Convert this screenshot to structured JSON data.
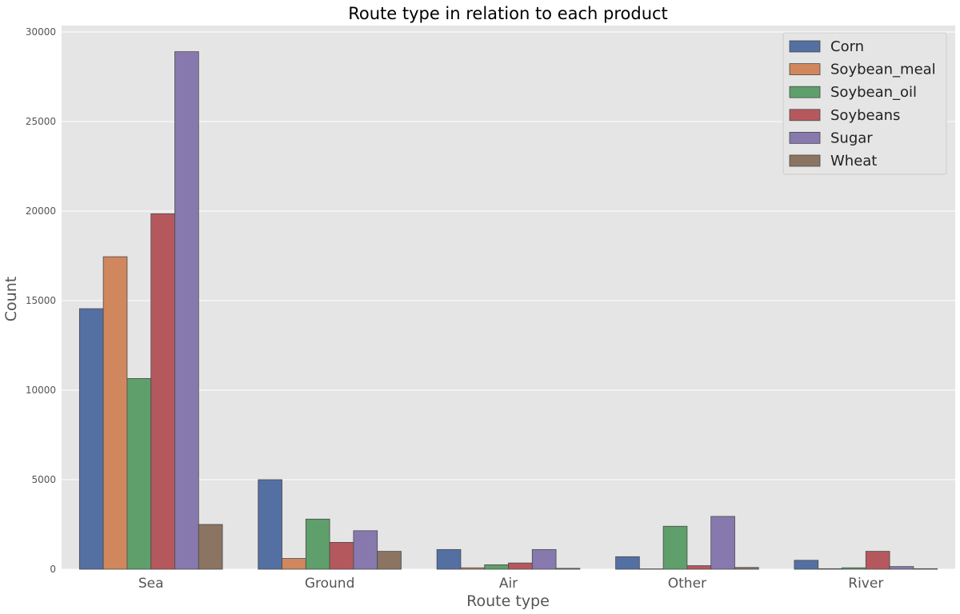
{
  "chart_data": {
    "type": "bar",
    "title": "Route type in relation to each product",
    "xlabel": "Route type",
    "ylabel": "Count",
    "categories": [
      "Sea",
      "Ground",
      "Air",
      "Other",
      "River"
    ],
    "ylim": [
      0,
      30000
    ],
    "yticks": [
      "0",
      "5000",
      "10000",
      "15000",
      "20000",
      "25000",
      "30000"
    ],
    "grid": true,
    "legend_position": "top-right",
    "series": [
      {
        "name": "Corn",
        "color": "#5470a3",
        "values": [
          14550,
          5000,
          1100,
          700,
          500
        ]
      },
      {
        "name": "Soybean_meal",
        "color": "#d0875e",
        "values": [
          17450,
          600,
          80,
          20,
          30
        ]
      },
      {
        "name": "Soybean_oil",
        "color": "#5e9f6b",
        "values": [
          10650,
          2800,
          250,
          2400,
          80
        ]
      },
      {
        "name": "Soybeans",
        "color": "#b5585e",
        "values": [
          19850,
          1500,
          350,
          200,
          1000
        ]
      },
      {
        "name": "Sugar",
        "color": "#8779ae",
        "values": [
          28900,
          2150,
          1100,
          2950,
          150
        ]
      },
      {
        "name": "Wheat",
        "color": "#8b7461",
        "values": [
          2500,
          1000,
          50,
          100,
          30
        ]
      }
    ]
  }
}
